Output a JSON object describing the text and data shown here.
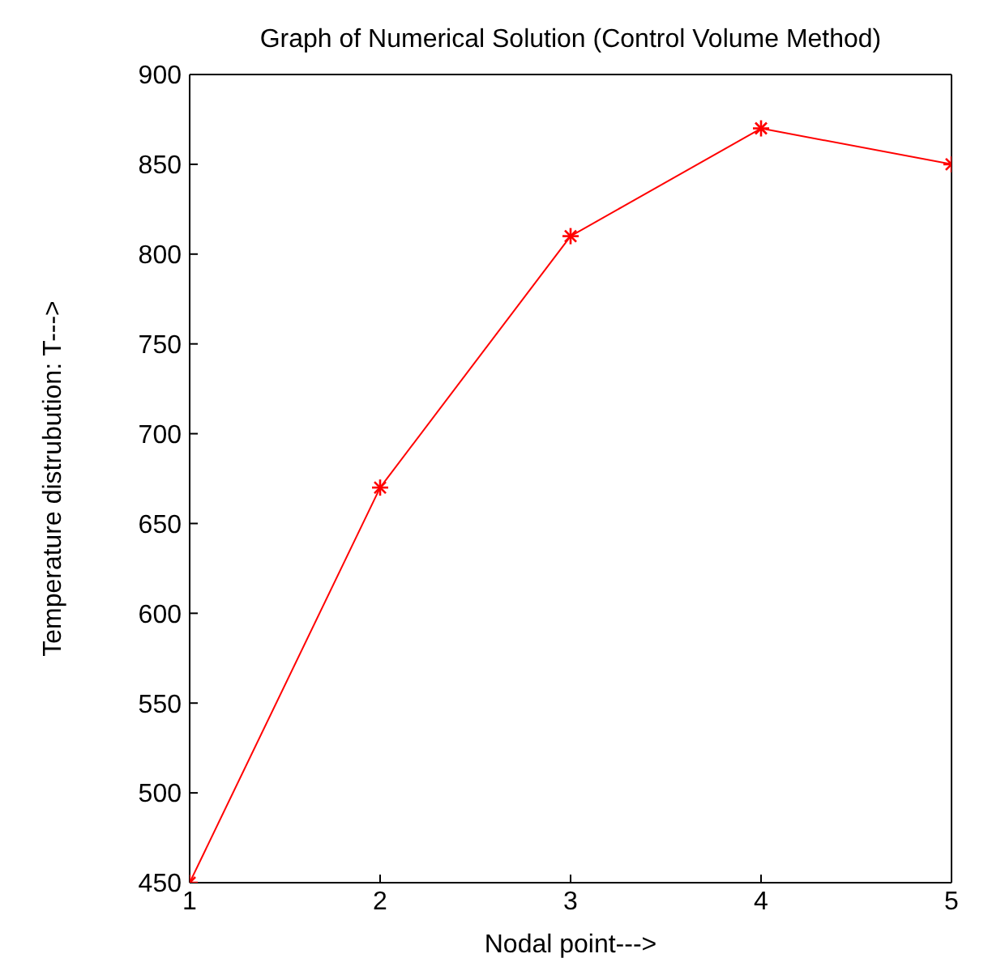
{
  "chart_data": {
    "type": "line",
    "title": "Graph of Numerical Solution (Control Volume Method)",
    "xlabel": "Nodal point--->",
    "ylabel": "Temperature distrubution:   T--->",
    "x": [
      1,
      2,
      3,
      4,
      5
    ],
    "series": [
      {
        "color": "#ff0000",
        "values": [
          450,
          670,
          810,
          870,
          850
        ]
      }
    ],
    "xlim": [
      1,
      5
    ],
    "xticks": [
      1,
      2,
      3,
      4,
      5
    ],
    "ylim": [
      450,
      900
    ],
    "yticks": [
      450,
      500,
      550,
      600,
      650,
      700,
      750,
      800,
      850,
      900
    ],
    "marker": "cross",
    "line_style": "solid",
    "grid": false,
    "legend": false
  }
}
